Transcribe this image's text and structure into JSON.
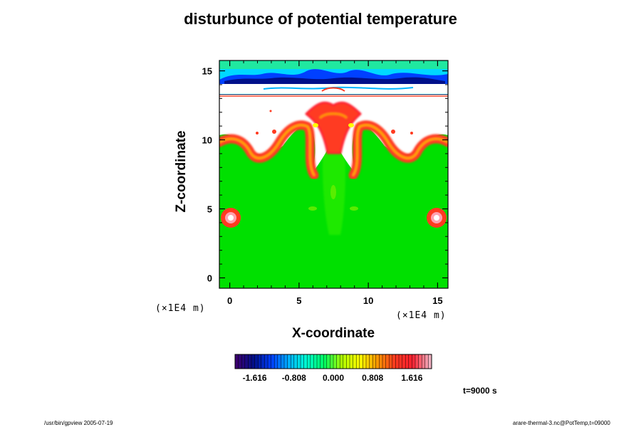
{
  "chart_data": {
    "type": "heatmap",
    "title": "disturbunce of potential temperature",
    "xlabel": "X-coordinate",
    "ylabel": "Z-coordinate",
    "x_unit": "(×1E4 m)",
    "z_unit": "(×1E4 m)",
    "xlim": [
      -0.75,
      15.75
    ],
    "ylim": [
      -0.75,
      15.75
    ],
    "x_ticks": [
      "0",
      "5",
      "10",
      "15"
    ],
    "y_ticks": [
      "0",
      "5",
      "10",
      "15"
    ],
    "x_tick_values": [
      0,
      5,
      10,
      15
    ],
    "y_tick_values": [
      0,
      5,
      10,
      15
    ],
    "colorbar": {
      "tick_labels": [
        "-1.616",
        "-0.808",
        "0.000",
        "0.808",
        "1.616"
      ],
      "tick_values": [
        -1.616,
        -0.808,
        0.0,
        0.808,
        1.616
      ],
      "range": [
        -2.02,
        2.02
      ],
      "colors": [
        "#3a0070",
        "#00108a",
        "#0040ff",
        "#00b4ff",
        "#00ffd0",
        "#00ff60",
        "#b0ff00",
        "#ffff00",
        "#ff9900",
        "#ff3a20",
        "#ff2030",
        "#f0b0c0"
      ]
    },
    "field_regions": [
      {
        "feature": "background",
        "value": 0.0
      },
      {
        "feature": "upper warm layer, z 9-13",
        "value": 1.2
      },
      {
        "feature": "top cold band, z 14-15.7",
        "value": -1.6
      },
      {
        "feature": "warm blobs near x=0 and x=15, z=4.2",
        "value": 1.6
      }
    ]
  },
  "time_label": "t=9000 s",
  "footer_left": "/usr/bin/gpview 2005-07-19",
  "footer_right": "arare-thermal-3.nc@PotTemp,t=09000",
  "colors": {
    "background": "#ffffff",
    "field_neutral": "#00e400",
    "warm": "#ff3020",
    "cold": "#0040ff"
  }
}
